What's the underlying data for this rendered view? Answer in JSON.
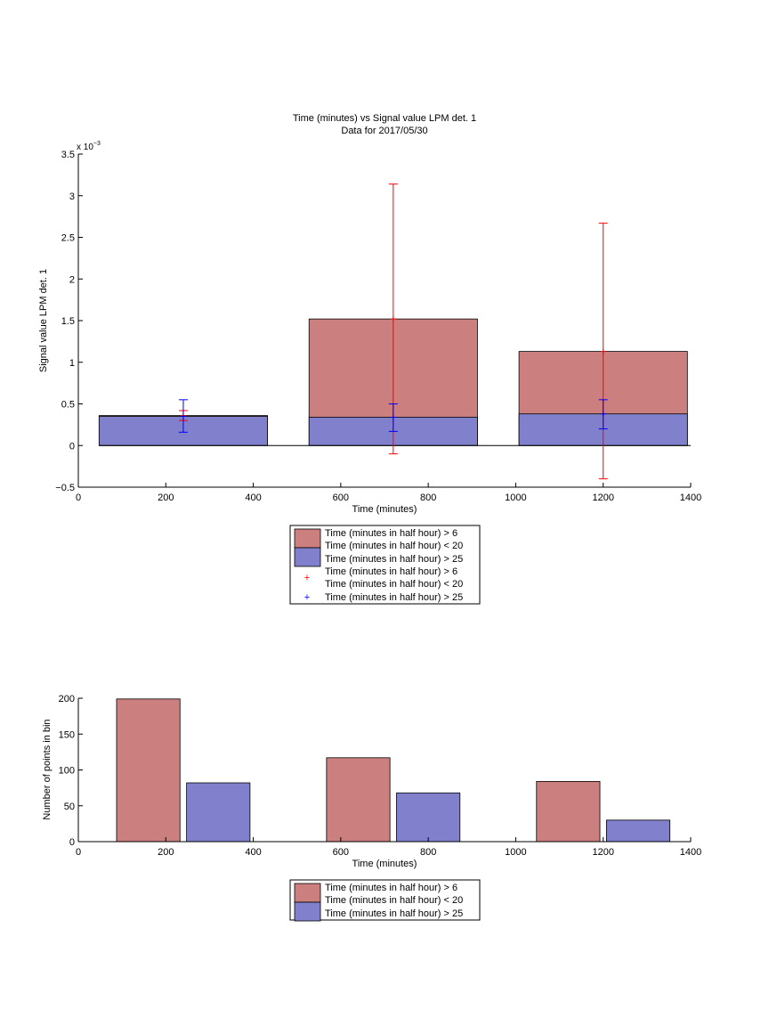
{
  "chart_data": [
    {
      "type": "bar",
      "title": "Time (minutes) vs Signal value LPM det. 1",
      "subtitle": "Data for 2017/05/30",
      "xlabel": "Time (minutes)",
      "ylabel": "Signal value LPM det. 1",
      "exponent_label": "x 10",
      "exponent_power": "−3",
      "xlim": [
        0,
        1400
      ],
      "ylim": [
        -0.5,
        3.5
      ],
      "y_scale_factor": 0.001,
      "xticks": [
        "0",
        "200",
        "400",
        "600",
        "800",
        "1000",
        "1200",
        "1400"
      ],
      "yticks": [
        "−0.5",
        "0",
        "0.5",
        "1",
        "1.5",
        "2",
        "2.5",
        "3",
        "3.5"
      ],
      "barmode": "overlay",
      "bins": [
        240,
        720,
        1200
      ],
      "bar_width": 385,
      "series": [
        {
          "name": "Time (minutes in half hour) > 6\nTime (minutes in half hour) < 20",
          "color": "#cc7f7f",
          "values": [
            0.36,
            1.52,
            1.13
          ],
          "err_color": "#ff0000",
          "err_low": [
            0.3,
            -0.1,
            -0.4
          ],
          "err_high": [
            0.42,
            3.14,
            2.67
          ]
        },
        {
          "name": "Time (minutes in half hour) > 25",
          "color": "#8080cc",
          "values": [
            0.35,
            0.34,
            0.38
          ],
          "err_color": "#0000ff",
          "err_low": [
            0.16,
            0.17,
            0.2
          ],
          "err_high": [
            0.55,
            0.5,
            0.55
          ]
        }
      ],
      "legend": {
        "placement": "below",
        "entries": [
          "Time (minutes in half hour) > 6",
          "Time (minutes in half hour) < 20",
          "Time (minutes in half hour) > 25",
          "Time (minutes in half hour) > 6",
          "Time (minutes in half hour) < 20",
          "Time (minutes in half hour) > 25"
        ]
      },
      "grid": false
    },
    {
      "type": "bar",
      "xlabel": "Time (minutes)",
      "ylabel": "Number of points in bin",
      "xlim": [
        0,
        1400
      ],
      "ylim": [
        0,
        200
      ],
      "xticks": [
        "0",
        "200",
        "400",
        "600",
        "800",
        "1000",
        "1200",
        "1400"
      ],
      "yticks": [
        "0",
        "50",
        "100",
        "150",
        "200"
      ],
      "barmode": "grouped",
      "bar_width": 145,
      "series": [
        {
          "name": "Time (minutes in half hour) > 6\nTime (minutes in half hour) < 20",
          "color": "#cc7f7f",
          "x": [
            160,
            640,
            1120
          ],
          "values": [
            199,
            117,
            84
          ]
        },
        {
          "name": "Time (minutes in half hour) > 25",
          "color": "#8080cc",
          "x": [
            320,
            800,
            1280
          ],
          "values": [
            82,
            68,
            30
          ]
        }
      ],
      "legend": {
        "placement": "below",
        "entries": [
          "Time (minutes in half hour) > 6",
          "Time (minutes in half hour) < 20",
          "Time (minutes in half hour) > 25"
        ]
      },
      "grid": false
    }
  ]
}
